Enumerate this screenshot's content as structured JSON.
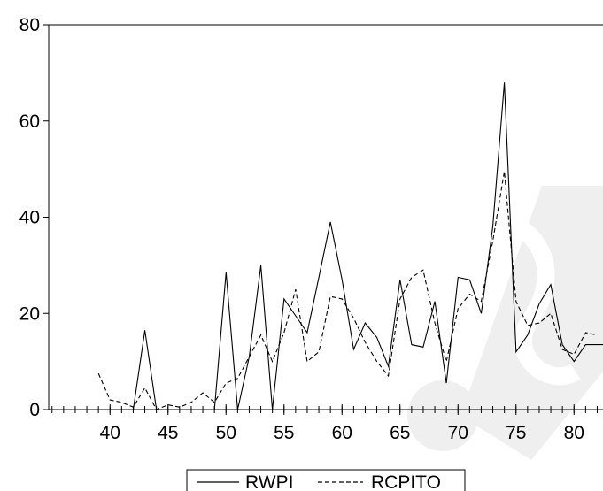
{
  "chart_data": {
    "type": "line",
    "title": "",
    "xlabel": "",
    "ylabel": "",
    "xlim": [
      38.6,
      82.5
    ],
    "ylim": [
      0,
      80
    ],
    "x_ticks": [
      40,
      45,
      50,
      55,
      60,
      65,
      70,
      75,
      80
    ],
    "y_ticks": [
      0,
      20,
      40,
      60,
      80
    ],
    "grid": false,
    "legend_position": "bottom-center",
    "series": [
      {
        "name": "RWPI",
        "style": "solid",
        "color": "#000000",
        "x": [
          42,
          43,
          44,
          45,
          46,
          47,
          48,
          49,
          50,
          51,
          52,
          53,
          54,
          55,
          56,
          57,
          58,
          59,
          60,
          61,
          62,
          63,
          64,
          65,
          66,
          67,
          68,
          69,
          70,
          71,
          72,
          73,
          74,
          75,
          76,
          77,
          78,
          79,
          80,
          81,
          82,
          82.5
        ],
        "values": [
          0,
          16.5,
          0,
          0,
          0,
          0,
          0,
          0,
          28.5,
          0,
          11,
          30,
          0,
          23,
          19.5,
          16,
          27.5,
          39,
          27,
          12.5,
          18,
          15,
          9,
          27,
          13.5,
          13,
          22.5,
          5.5,
          27.5,
          27,
          20,
          38,
          68,
          12,
          15.5,
          22,
          26,
          13.5,
          10,
          13.5,
          13.5,
          13.5
        ]
      },
      {
        "name": "RCPITO",
        "style": "dashed",
        "color": "#000000",
        "x": [
          39,
          40,
          41,
          42,
          43,
          44,
          45,
          46,
          47,
          48,
          49,
          50,
          51,
          52,
          53,
          54,
          55,
          56,
          57,
          58,
          59,
          60,
          61,
          62,
          63,
          64,
          65,
          66,
          67,
          68,
          69,
          70,
          71,
          72,
          73,
          74,
          75,
          76,
          77,
          78,
          79,
          80,
          81,
          82
        ],
        "values": [
          7.5,
          2,
          1.5,
          0.5,
          4.5,
          0,
          1,
          0.5,
          1.5,
          3.5,
          1.5,
          5.5,
          6.5,
          11,
          15.5,
          10,
          16,
          25,
          10,
          12,
          23.5,
          23,
          19,
          14,
          10,
          7,
          23,
          27.5,
          29,
          18,
          10,
          21,
          24,
          22.5,
          35,
          49.5,
          22.5,
          17.5,
          18,
          20,
          12.5,
          11.5,
          16,
          15.5
        ]
      }
    ]
  },
  "legend": {
    "items": [
      {
        "label": "RWPI"
      },
      {
        "label": "RCPITO"
      }
    ]
  },
  "watermark": {
    "text": "SID"
  }
}
